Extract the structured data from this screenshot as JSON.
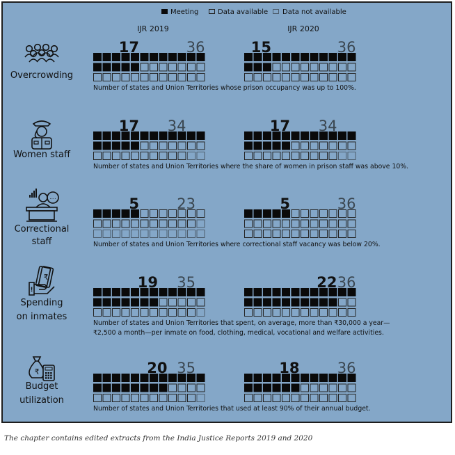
{
  "legend": {
    "meeting": "Meeting",
    "available": "Data available",
    "not_available": "Data not available"
  },
  "columns": [
    "IJR 2019",
    "IJR 2020"
  ],
  "colors": {
    "meeting": "#0a0a0a",
    "available_stroke": "#242424",
    "not_available_stroke": "#4d5d6c"
  },
  "chart_data": {
    "type": "waffle",
    "total_units": 36,
    "categories": [
      {
        "name": "Overcrowding",
        "label_lines": [
          "Overcrowding"
        ],
        "icon": "crowd-icon",
        "description": [
          "Number of states and Union Territories whose prison occupancy was up to 100%."
        ],
        "ijr2019": {
          "meeting": 17,
          "available": 36
        },
        "ijr2020": {
          "meeting": 15,
          "available": 36
        }
      },
      {
        "name": "Women staff",
        "label_lines": [
          "Women staff"
        ],
        "icon": "woman-officer-icon",
        "description": [
          "Number of states and Union Territories where the share of women in prison staff was above 10%."
        ],
        "ijr2019": {
          "meeting": 17,
          "available": 34
        },
        "ijr2020": {
          "meeting": 17,
          "available": 34
        }
      },
      {
        "name": "Correctional staff",
        "label_lines": [
          "Correctional",
          "staff"
        ],
        "icon": "counselor-desk-icon",
        "description": [
          "Number of states and Union Territories where correctional staff vacancy was below 20%."
        ],
        "ijr2019": {
          "meeting": 5,
          "available": 23
        },
        "ijr2020": {
          "meeting": 5,
          "available": 36
        }
      },
      {
        "name": "Spending on inmates",
        "label_lines": [
          "Spending",
          "on inmates"
        ],
        "icon": "money-hand-icon",
        "description": [
          "Number of states and Union Territories that spent, on average, more than ₹30,000 a year—",
          "₹2,500 a month—per inmate on food, clothing, medical, vocational and welfare activities."
        ],
        "ijr2019": {
          "meeting": 19,
          "available": 35
        },
        "ijr2020": {
          "meeting": 22,
          "available": 36
        }
      },
      {
        "name": "Budget utilization",
        "label_lines": [
          "Budget",
          "utilization"
        ],
        "icon": "moneybag-calculator-icon",
        "description": [
          "Number of states and Union Territories that used at least 90% of their annual budget."
        ],
        "ijr2019": {
          "meeting": 20,
          "available": 35
        },
        "ijr2020": {
          "meeting": 18,
          "available": 36
        }
      }
    ]
  },
  "footer": {
    "caption": "The chapter contains edited extracts from the India Justice Reports 2019 and 2020"
  }
}
